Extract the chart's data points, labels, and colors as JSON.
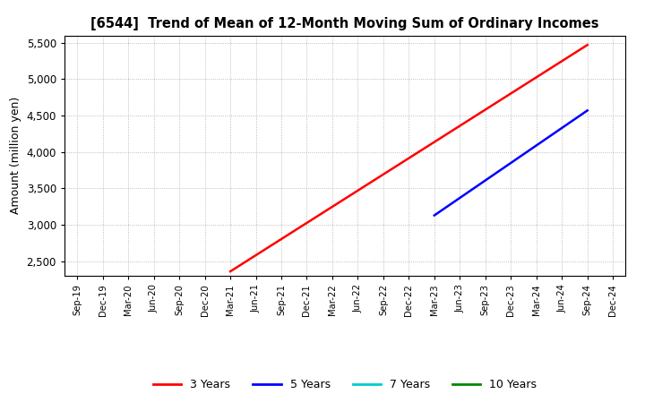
{
  "title": "[6544]  Trend of Mean of 12-Month Moving Sum of Ordinary Incomes",
  "ylabel": "Amount (million yen)",
  "ylim": [
    2300,
    5600
  ],
  "yticks": [
    2500,
    3000,
    3500,
    4000,
    4500,
    5000,
    5500
  ],
  "background_color": "#ffffff",
  "plot_bg_color": "#ffffff",
  "grid_color": "#aaaaaa",
  "line_3yr_color": "#ff0000",
  "line_5yr_color": "#0000ff",
  "line_7yr_color": "#00cccc",
  "line_10yr_color": "#008800",
  "x_labels": [
    "Sep-19",
    "Dec-19",
    "Mar-20",
    "Jun-20",
    "Sep-20",
    "Dec-20",
    "Mar-21",
    "Jun-21",
    "Sep-21",
    "Dec-21",
    "Mar-22",
    "Jun-22",
    "Sep-22",
    "Dec-22",
    "Mar-23",
    "Jun-23",
    "Sep-23",
    "Dec-23",
    "Mar-24",
    "Jun-24",
    "Sep-24",
    "Dec-24"
  ],
  "series_3yr": {
    "x": [
      6,
      20
    ],
    "y": [
      2360,
      5470
    ]
  },
  "series_5yr": {
    "x": [
      14,
      20
    ],
    "y": [
      3130,
      4570
    ]
  },
  "legend_entries": [
    "3 Years",
    "5 Years",
    "7 Years",
    "10 Years"
  ],
  "legend_colors": [
    "#ff0000",
    "#0000ff",
    "#00cccc",
    "#008800"
  ]
}
